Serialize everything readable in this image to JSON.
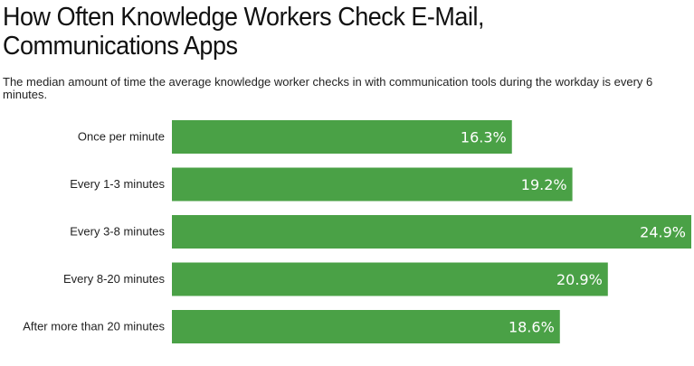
{
  "chart_data": {
    "type": "bar",
    "orientation": "horizontal",
    "title_lines": [
      "How Often Knowledge Workers Check E-Mail,",
      "Communications Apps"
    ],
    "subtitle": "The median amount of time the average knowledge worker checks in with communication tools during the workday is every 6 minutes.",
    "categories": [
      "Once per minute",
      "Every 1-3 minutes",
      "Every 3-8 minutes",
      "Every 8-20 minutes",
      "After more than 20 minutes"
    ],
    "values": [
      16.3,
      19.2,
      24.9,
      20.9,
      18.6
    ],
    "value_labels": [
      "16.3%",
      "19.2%",
      "24.9%",
      "20.9%",
      "18.6%"
    ],
    "xlim": [
      0,
      24.9
    ],
    "bar_color": "#4aa146",
    "grid": false,
    "legend": "none"
  }
}
